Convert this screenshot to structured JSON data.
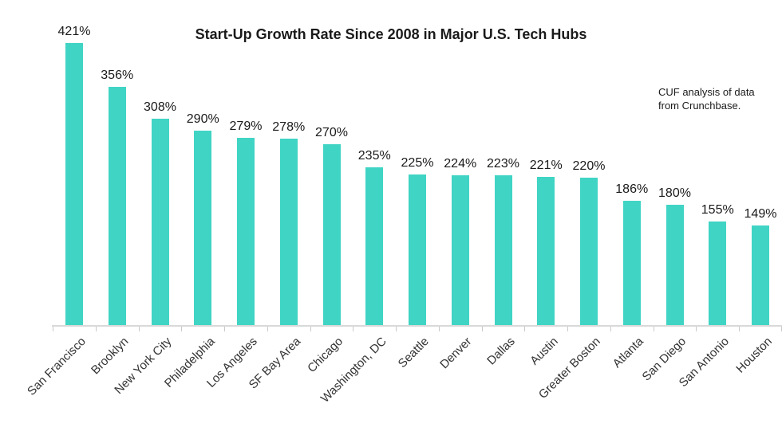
{
  "title": "Start-Up Growth Rate Since 2008 in Major U.S. Tech Hubs",
  "note": {
    "line1": "CUF analysis of data",
    "line2": "from Crunchbase."
  },
  "colors": {
    "bar": "#40d4c4",
    "axis": "#d9d9d9",
    "tick": "#c9c9c9",
    "text": "#1a1a1a",
    "xlabel_text": "#333333"
  },
  "chart_data": {
    "type": "bar",
    "title": "Start-Up Growth Rate Since 2008 in Major U.S. Tech Hubs",
    "categories": [
      "San Francisco",
      "Brooklyn",
      "New York City",
      "Philadelphia",
      "Los Angeles",
      "SF Bay Area",
      "Chicago",
      "Washington, DC",
      "Seattle",
      "Denver",
      "Dallas",
      "Austin",
      "Greater Boston",
      "Atlanta",
      "San Diego",
      "San Antonio",
      "Houston"
    ],
    "values": [
      421,
      356,
      308,
      290,
      279,
      278,
      270,
      235,
      225,
      224,
      223,
      221,
      220,
      186,
      180,
      155,
      149
    ],
    "value_suffix": "%",
    "data_labels": [
      "421%",
      "356%",
      "308%",
      "290%",
      "279%",
      "278%",
      "270%",
      "235%",
      "225%",
      "224%",
      "223%",
      "221%",
      "220%",
      "186%",
      "180%",
      "155%",
      "149%"
    ],
    "xlabel": "",
    "ylabel": "",
    "ylim": [
      0,
      440
    ],
    "grid": false,
    "legend": false,
    "bar_color": "#40d4c4",
    "annotation": "CUF analysis of data from Crunchbase."
  }
}
